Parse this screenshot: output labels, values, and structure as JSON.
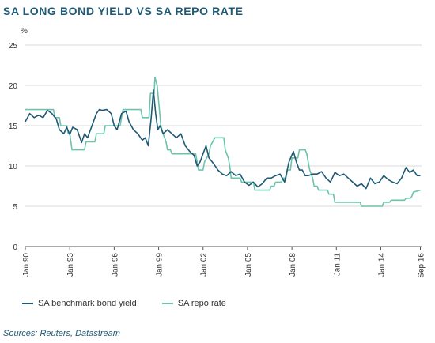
{
  "title": "SA LONG BOND YIELD VS SA REPO RATE",
  "source": "Sources: Reuters, Datastream",
  "colors": {
    "bond": "#1e5a75",
    "repo": "#6cc4ac",
    "grid": "#d9d9d9",
    "axis": "#555555"
  },
  "chart_data": {
    "type": "line",
    "ylabel": "%",
    "ylim": [
      0,
      25
    ],
    "yticks": [
      0,
      5,
      10,
      15,
      20,
      25
    ],
    "xlim": [
      1990.0,
      2016.75
    ],
    "xticks": [
      {
        "label": "Jan 90",
        "value": 1990.0
      },
      {
        "label": "Jan 93",
        "value": 1993.0
      },
      {
        "label": "Jan 96",
        "value": 1996.0
      },
      {
        "label": "Jan 99",
        "value": 1999.0
      },
      {
        "label": "Jan 02",
        "value": 2002.0
      },
      {
        "label": "Jan 05",
        "value": 2005.0
      },
      {
        "label": "Jan 08",
        "value": 2008.0
      },
      {
        "label": "Jan 11",
        "value": 2011.0
      },
      {
        "label": "Jan 14",
        "value": 2014.0
      },
      {
        "label": "Sep 16",
        "value": 2016.67
      }
    ],
    "legend_position": "bottom-left",
    "series": [
      {
        "name": "SA benchmark bond yield",
        "color": "#1e5a75",
        "x": [
          1990.0,
          1990.3,
          1990.6,
          1990.9,
          1991.2,
          1991.5,
          1991.8,
          1992.1,
          1992.3,
          1992.6,
          1992.8,
          1993.0,
          1993.2,
          1993.5,
          1993.8,
          1994.0,
          1994.2,
          1994.5,
          1994.8,
          1995.0,
          1995.2,
          1995.5,
          1995.8,
          1996.0,
          1996.2,
          1996.5,
          1996.8,
          1997.0,
          1997.3,
          1997.6,
          1997.9,
          1998.1,
          1998.3,
          1998.5,
          1998.65,
          1998.8,
          1998.95,
          1999.1,
          1999.3,
          1999.6,
          1999.9,
          2000.2,
          2000.5,
          2000.8,
          2001.1,
          2001.4,
          2001.6,
          2001.8,
          2002.0,
          2002.2,
          2002.4,
          2002.7,
          2003.0,
          2003.3,
          2003.6,
          2003.9,
          2004.2,
          2004.5,
          2004.8,
          2005.1,
          2005.4,
          2005.7,
          2006.0,
          2006.3,
          2006.6,
          2006.9,
          2007.2,
          2007.5,
          2007.8,
          2008.1,
          2008.3,
          2008.5,
          2008.7,
          2008.9,
          2009.1,
          2009.4,
          2009.7,
          2010.0,
          2010.3,
          2010.6,
          2010.9,
          2011.2,
          2011.5,
          2011.8,
          2012.1,
          2012.4,
          2012.7,
          2013.0,
          2013.3,
          2013.6,
          2013.9,
          2014.2,
          2014.5,
          2014.8,
          2015.1,
          2015.4,
          2015.7,
          2015.95,
          2016.2,
          2016.45,
          2016.67
        ],
        "values": [
          15.5,
          16.5,
          16.0,
          16.3,
          16.0,
          16.9,
          16.5,
          15.8,
          14.5,
          14.0,
          14.8,
          13.9,
          14.8,
          14.5,
          12.9,
          14.0,
          13.5,
          15.0,
          16.5,
          17.0,
          16.9,
          17.0,
          16.5,
          15.0,
          14.5,
          16.5,
          16.8,
          15.5,
          14.5,
          14.0,
          13.2,
          13.5,
          12.5,
          16.0,
          19.4,
          16.5,
          14.5,
          15.0,
          14.0,
          14.5,
          14.0,
          13.5,
          14.0,
          12.5,
          11.8,
          11.3,
          10.0,
          10.5,
          11.5,
          12.5,
          11.0,
          10.3,
          9.5,
          9.0,
          8.8,
          9.3,
          8.8,
          9.0,
          8.0,
          7.6,
          8.0,
          7.4,
          7.8,
          8.5,
          8.5,
          8.8,
          9.0,
          8.0,
          10.5,
          11.8,
          10.5,
          9.5,
          9.5,
          8.8,
          8.8,
          9.0,
          9.0,
          9.3,
          8.5,
          8.0,
          9.2,
          8.8,
          9.0,
          8.5,
          8.0,
          7.5,
          7.8,
          7.2,
          8.5,
          7.8,
          8.0,
          8.8,
          8.3,
          8.0,
          7.8,
          8.5,
          9.8,
          9.2,
          9.5,
          8.8,
          8.8
        ]
      },
      {
        "name": "SA repo rate",
        "color": "#6cc4ac",
        "x": [
          1990.0,
          1991.9,
          1992.0,
          1992.3,
          1992.4,
          1992.8,
          1992.9,
          1993.0,
          1993.15,
          1994.0,
          1994.1,
          1994.7,
          1994.8,
          1995.3,
          1995.4,
          1996.4,
          1996.5,
          1996.6,
          1997.8,
          1997.9,
          1998.0,
          1998.35,
          1998.45,
          1998.7,
          1998.75,
          1998.9,
          1999.0,
          1999.15,
          1999.3,
          1999.5,
          1999.6,
          1999.8,
          1999.9,
          2000.0,
          2001.5,
          2001.6,
          2001.7,
          2002.0,
          2002.1,
          2002.4,
          2002.5,
          2002.8,
          2003.4,
          2003.5,
          2003.7,
          2003.8,
          2003.9,
          2004.5,
          2004.6,
          2005.4,
          2005.5,
          2006.5,
          2006.6,
          2006.8,
          2006.9,
          2007.3,
          2007.4,
          2007.6,
          2007.7,
          2007.9,
          2008.0,
          2008.4,
          2008.5,
          2008.9,
          2009.0,
          2009.1,
          2009.2,
          2009.4,
          2009.5,
          2009.7,
          2009.8,
          2010.4,
          2010.5,
          2010.8,
          2010.9,
          2012.6,
          2012.7,
          2014.1,
          2014.2,
          2014.6,
          2014.7,
          2015.6,
          2015.7,
          2016.0,
          2016.1,
          2016.2,
          2016.67
        ],
        "values": [
          17.0,
          17.0,
          16.0,
          16.0,
          15.0,
          15.0,
          14.0,
          14.0,
          12.0,
          12.0,
          13.0,
          13.0,
          14.0,
          14.0,
          15.0,
          15.0,
          16.0,
          17.0,
          17.0,
          16.0,
          16.0,
          16.0,
          19.0,
          19.0,
          21.0,
          20.0,
          18.0,
          15.0,
          14.0,
          13.0,
          12.0,
          12.0,
          11.5,
          11.5,
          11.5,
          10.5,
          9.5,
          9.5,
          10.5,
          11.5,
          12.5,
          13.5,
          13.5,
          12.0,
          11.0,
          10.0,
          8.5,
          8.5,
          8.0,
          8.0,
          7.0,
          7.0,
          7.5,
          7.5,
          8.0,
          8.0,
          8.5,
          8.5,
          9.5,
          9.5,
          11.0,
          11.0,
          12.0,
          12.0,
          11.5,
          10.5,
          9.5,
          8.5,
          7.5,
          7.5,
          7.0,
          7.0,
          6.5,
          6.5,
          5.5,
          5.5,
          5.0,
          5.0,
          5.5,
          5.5,
          5.75,
          5.75,
          6.0,
          6.0,
          6.25,
          6.75,
          7.0
        ]
      }
    ]
  }
}
